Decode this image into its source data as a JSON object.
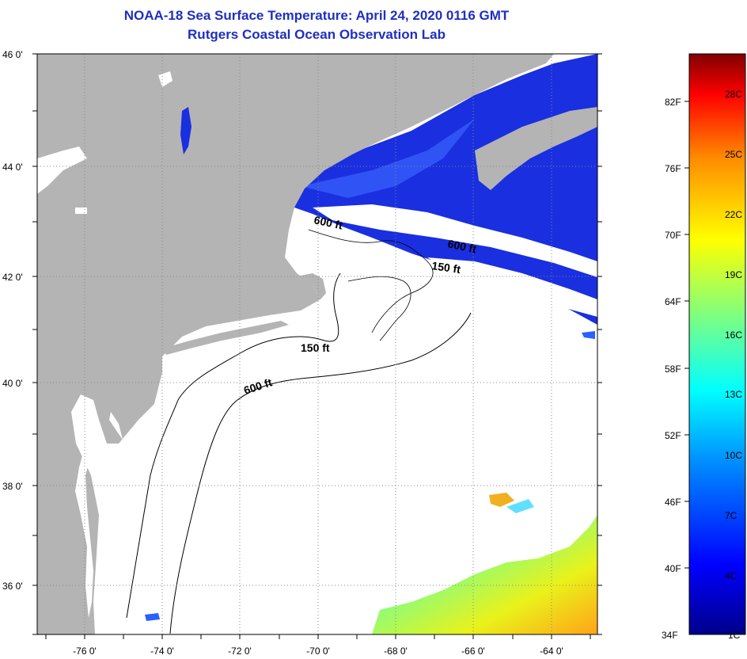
{
  "header": {
    "title": "NOAA-18 Sea Surface Temperature:  April 24, 2020 0116 GMT",
    "subtitle": "Rutgers Coastal Ocean Observation Lab"
  },
  "axes": {
    "lat_labels": [
      "46 0'",
      "44 0'",
      "42 0'",
      "40 0'",
      "38 0'",
      "36 0'"
    ],
    "lon_labels": [
      "-76 0'",
      "-74 0'",
      "-72 0'",
      "-70 0'",
      "-68 0'",
      "-66 0'",
      "-64 0'"
    ]
  },
  "contours": {
    "shallow": "150 ft",
    "deep": "600 ft",
    "gulf_a": "600 ft",
    "gulf_b": "600 ft",
    "gulf_c": "150 ft"
  },
  "colorbar": {
    "f_labels": [
      "82F",
      "76F",
      "70F",
      "64F",
      "58F",
      "52F",
      "46F",
      "40F",
      "34F"
    ],
    "c_labels": [
      "28C",
      "25C",
      "22C",
      "19C",
      "16C",
      "13C",
      "10C",
      "7C",
      "4C",
      "1C"
    ]
  },
  "colors": {
    "land": "#b4b4b4",
    "cold_water": "#1a2fe0",
    "warm_water": "#f2d21a",
    "title": "#1f2fbf"
  }
}
